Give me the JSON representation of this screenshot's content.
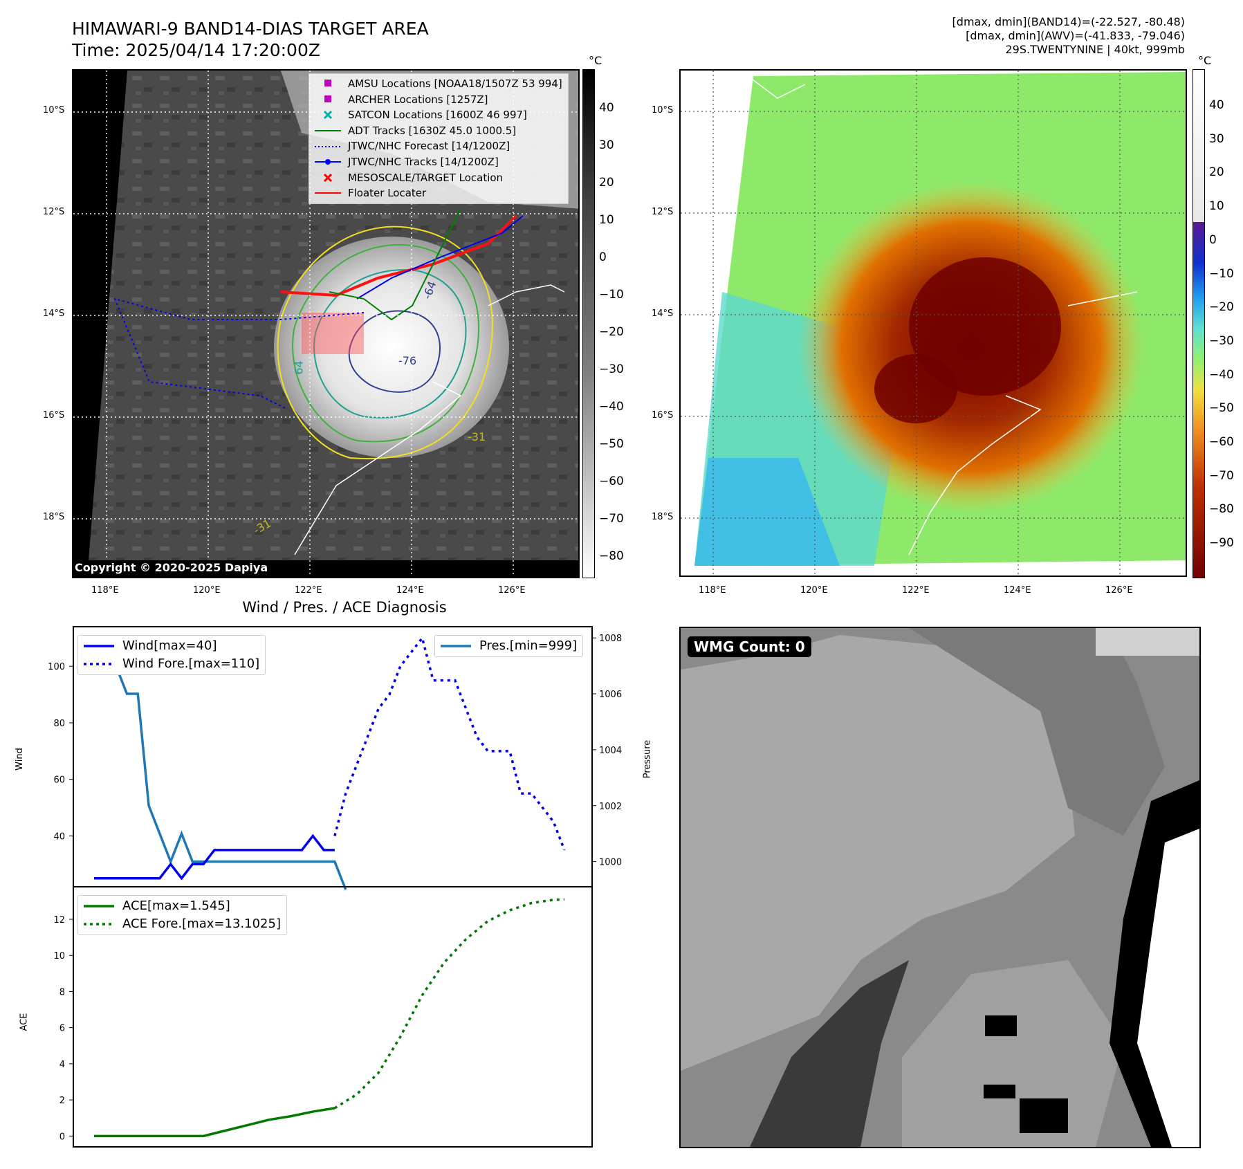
{
  "header": {
    "title_line1": "HIMAWARI-9 BAND14-DIAS TARGET AREA",
    "title_line2": "Time: 2025/04/14 17:20:00Z",
    "stats_line1": "[dmax, dmin](BAND14)=(-22.527, -80.48)",
    "stats_line2": "[dmax, dmin](AWV)=(-41.833, -79.046)",
    "stats_line3": "29S.TWENTYNINE | 40kt, 999mb"
  },
  "map": {
    "lat_ticks": [
      "10°S",
      "12°S",
      "14°S",
      "16°S",
      "18°S"
    ],
    "lon_ticks": [
      "118°E",
      "120°E",
      "122°E",
      "124°E",
      "126°E"
    ],
    "copyright": "Copyright © 2020-2025 Dapiya",
    "unit": "°C",
    "contour_labels": [
      "-64",
      "-76",
      "-31",
      "64",
      "-31"
    ],
    "colorbar_left": [
      "40",
      "30",
      "20",
      "10",
      "0",
      "−10",
      "−20",
      "−30",
      "−40",
      "−50",
      "−60",
      "−70",
      "−80"
    ],
    "colorbar_right": [
      "40",
      "30",
      "20",
      "10",
      "0",
      "−10",
      "−20",
      "−30",
      "−40",
      "−50",
      "−60",
      "−70",
      "−80",
      "−90"
    ],
    "legend": [
      {
        "label": "AMSU Locations [NOAA18/1507Z 53 994]",
        "marker": "square",
        "color": "#c000c0"
      },
      {
        "label": "ARCHER Locations [1257Z]",
        "marker": "square",
        "color": "#c000c0"
      },
      {
        "label": "SATCON Locations [1600Z 46 997]",
        "marker": "x",
        "color": "#00b0b0"
      },
      {
        "label": "ADT Tracks [1630Z 45.0 1000.5]",
        "marker": "line",
        "color": "#008000"
      },
      {
        "label": "JTWC/NHC Forecast [14/1200Z]",
        "marker": "dotted",
        "color": "#0000ff"
      },
      {
        "label": "JTWC/NHC Tracks [14/1200Z]",
        "marker": "line-dot",
        "color": "#0000ff"
      },
      {
        "label": "MESOSCALE/TARGET Location",
        "marker": "x",
        "color": "#ff0000"
      },
      {
        "label": "Floater Locater",
        "marker": "line",
        "color": "#ff0000"
      }
    ]
  },
  "diagnosis": {
    "title": "Wind / Pres. / ACE Diagnosis",
    "wind_ylabel": "Wind",
    "pres_ylabel": "Pressure",
    "ace_ylabel": "ACE",
    "wind_legend": [
      "Wind[max=40]",
      "Wind Fore.[max=110]"
    ],
    "pres_legend": [
      "Pres.[min=999]"
    ],
    "ace_legend": [
      "ACE[max=1.545]",
      "ACE Fore.[max=13.1025]"
    ],
    "colors": {
      "wind": "#0000ee",
      "pres": "#1f77b4",
      "ace": "#007a00"
    }
  },
  "wmg": {
    "label": "WMG Count: 0"
  },
  "chart_data": [
    {
      "type": "line",
      "title": "Wind / Pres. / ACE Diagnosis",
      "ylabel": "Wind",
      "ylim": [
        22,
        114
      ],
      "x": [
        0,
        1,
        2,
        3,
        4,
        5,
        6,
        7,
        8,
        9,
        10,
        11,
        12,
        13,
        14,
        15,
        16,
        17,
        18,
        19,
        20,
        21,
        22,
        23,
        24,
        25,
        26,
        27,
        28,
        29,
        30,
        31,
        32,
        33,
        34,
        35,
        36,
        37,
        38,
        39,
        40,
        41,
        42,
        43
      ],
      "series": [
        {
          "name": "Wind[max=40]",
          "style": "solid",
          "x": [
            0,
            1,
            2,
            3,
            4,
            5,
            6,
            7,
            8,
            9,
            10,
            11,
            12,
            13,
            14,
            15,
            16,
            17,
            18,
            19,
            20,
            21,
            22
          ],
          "values": [
            25,
            25,
            25,
            25,
            25,
            25,
            25,
            30,
            25,
            30,
            30,
            35,
            35,
            35,
            35,
            35,
            35,
            35,
            35,
            35,
            40,
            35,
            35
          ]
        },
        {
          "name": "Wind Fore.[max=110]",
          "style": "dotted",
          "x": [
            22,
            23,
            24,
            25,
            26,
            27,
            28,
            29,
            30,
            31,
            32,
            33,
            34,
            35,
            36,
            37,
            38,
            39,
            40,
            41,
            42,
            43
          ],
          "values": [
            40,
            55,
            65,
            75,
            85,
            90,
            100,
            105,
            110,
            95,
            95,
            95,
            85,
            75,
            70,
            70,
            70,
            55,
            55,
            50,
            45,
            35
          ]
        },
        {
          "name": "Pres.[min=999]",
          "style": "solid",
          "axis": "right",
          "ylim": [
            999.1,
            1008.4
          ],
          "x": [
            0,
            1,
            2,
            3,
            4,
            5,
            6,
            7,
            8,
            9,
            10,
            11,
            12,
            13,
            14,
            15,
            16,
            17,
            18,
            19,
            20,
            21,
            22,
            23
          ],
          "values": [
            1008,
            1007,
            1007,
            1006,
            1006,
            1002,
            1001,
            1000,
            1001,
            1000,
            1000,
            1000,
            1000,
            1000,
            1000,
            1000,
            1000,
            1000,
            1000,
            1000,
            1000,
            1000,
            1000,
            999
          ]
        }
      ],
      "pres_ticks": [
        1000,
        1002,
        1004,
        1006,
        1008
      ],
      "wind_ticks": [
        40,
        60,
        80,
        100
      ]
    },
    {
      "type": "line",
      "ylabel": "ACE",
      "ylim": [
        -0.6,
        13.8
      ],
      "yticks": [
        0,
        2,
        4,
        6,
        8,
        10,
        12
      ],
      "series": [
        {
          "name": "ACE[max=1.545]",
          "style": "solid",
          "x": [
            0,
            2,
            4,
            6,
            8,
            10,
            12,
            14,
            16,
            18,
            20,
            22
          ],
          "values": [
            0,
            0,
            0,
            0,
            0,
            0,
            0.3,
            0.6,
            0.9,
            1.1,
            1.35,
            1.545
          ]
        },
        {
          "name": "ACE Fore.[max=13.1025]",
          "style": "dotted",
          "x": [
            22,
            24,
            26,
            28,
            30,
            32,
            34,
            36,
            38,
            40,
            42,
            43
          ],
          "values": [
            1.545,
            2.3,
            3.5,
            5.5,
            7.8,
            9.6,
            10.9,
            11.9,
            12.5,
            12.9,
            13.08,
            13.1025
          ]
        }
      ]
    }
  ]
}
